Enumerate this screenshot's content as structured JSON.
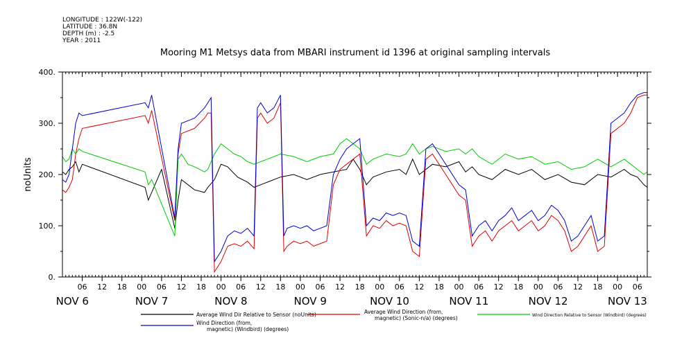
{
  "meta": {
    "longitude": "LONGITUDE : 122W(-122)",
    "latitude": "LATITUDE : 36.8N",
    "depth": "DEPTH (m) : -2.5",
    "year": "YEAR : 2011"
  },
  "chart_data": {
    "type": "line",
    "title": "Mooring M1 Metsys data from MBARI instrument id 1396 at original sampling intervals",
    "ylabel": "noUnits",
    "xlabel": "",
    "ylim": [
      0,
      400
    ],
    "yticks": [
      "0.",
      "100.",
      "200.",
      "300.",
      "400."
    ],
    "xlim_hours": [
      0,
      177
    ],
    "hour_ticks": [
      "06",
      "12",
      "18",
      "00",
      "06",
      "12",
      "18",
      "00",
      "06",
      "12",
      "18",
      "00",
      "06",
      "12",
      "18",
      "00",
      "06",
      "12",
      "18",
      "00",
      "06",
      "12",
      "18",
      "00",
      "06",
      "12",
      "18",
      "00",
      "06",
      "12",
      "18",
      "00",
      "06"
    ],
    "day_labels": [
      {
        "label": "NOV   6",
        "day": 6
      },
      {
        "label": "NOV   7",
        "day": 7
      },
      {
        "label": "NOV   8",
        "day": 8
      },
      {
        "label": "NOV   9",
        "day": 9
      },
      {
        "label": "NOV 10",
        "day": 10
      },
      {
        "label": "NOV 11",
        "day": 11
      },
      {
        "label": "NOV 12",
        "day": 12
      },
      {
        "label": "NOV 13",
        "day": 13
      }
    ],
    "grid": false,
    "legend_position": "bottom",
    "series": [
      {
        "name": "Average Wind Dir Relative to Sensor (noUnits)",
        "color": "#000000",
        "points": [
          [
            0,
            205
          ],
          [
            1,
            200
          ],
          [
            2,
            210
          ],
          [
            3,
            215
          ],
          [
            4,
            225
          ],
          [
            5,
            205
          ],
          [
            6,
            220
          ],
          [
            25,
            175
          ],
          [
            26,
            150
          ],
          [
            27,
            165
          ],
          [
            30,
            210
          ],
          [
            34,
            95
          ],
          [
            35,
            150
          ],
          [
            36,
            190
          ],
          [
            38,
            180
          ],
          [
            40,
            170
          ],
          [
            43,
            165
          ],
          [
            44,
            175
          ],
          [
            46,
            190
          ],
          [
            48,
            220
          ],
          [
            50,
            215
          ],
          [
            53,
            195
          ],
          [
            56,
            185
          ],
          [
            58,
            175
          ],
          [
            62,
            185
          ],
          [
            66,
            195
          ],
          [
            70,
            200
          ],
          [
            74,
            190
          ],
          [
            78,
            200
          ],
          [
            82,
            205
          ],
          [
            86,
            210
          ],
          [
            88,
            230
          ],
          [
            90,
            210
          ],
          [
            92,
            180
          ],
          [
            94,
            195
          ],
          [
            98,
            205
          ],
          [
            102,
            210
          ],
          [
            104,
            200
          ],
          [
            106,
            230
          ],
          [
            108,
            200
          ],
          [
            112,
            220
          ],
          [
            116,
            215
          ],
          [
            120,
            225
          ],
          [
            122,
            205
          ],
          [
            124,
            215
          ],
          [
            126,
            200
          ],
          [
            130,
            190
          ],
          [
            134,
            210
          ],
          [
            138,
            200
          ],
          [
            142,
            210
          ],
          [
            146,
            190
          ],
          [
            150,
            200
          ],
          [
            154,
            185
          ],
          [
            158,
            180
          ],
          [
            162,
            200
          ],
          [
            166,
            195
          ],
          [
            170,
            210
          ],
          [
            172,
            200
          ],
          [
            174,
            195
          ],
          [
            176,
            180
          ],
          [
            177,
            175
          ]
        ]
      },
      {
        "name": "Average Wind Direction (from, magnetic) (Sonic-n/a) (degrees)",
        "color": "#e00000",
        "points": [
          [
            0,
            170
          ],
          [
            1,
            165
          ],
          [
            2,
            175
          ],
          [
            3,
            190
          ],
          [
            4,
            240
          ],
          [
            5,
            270
          ],
          [
            6,
            290
          ],
          [
            25,
            315
          ],
          [
            26,
            300
          ],
          [
            27,
            325
          ],
          [
            34,
            110
          ],
          [
            35,
            240
          ],
          [
            36,
            280
          ],
          [
            38,
            285
          ],
          [
            40,
            290
          ],
          [
            43,
            310
          ],
          [
            44,
            320
          ],
          [
            45,
            320
          ],
          [
            46,
            10
          ],
          [
            48,
            30
          ],
          [
            50,
            60
          ],
          [
            52,
            65
          ],
          [
            54,
            60
          ],
          [
            56,
            70
          ],
          [
            58,
            55
          ],
          [
            59,
            310
          ],
          [
            60,
            320
          ],
          [
            62,
            300
          ],
          [
            64,
            310
          ],
          [
            66,
            340
          ],
          [
            67,
            50
          ],
          [
            68,
            60
          ],
          [
            70,
            70
          ],
          [
            72,
            65
          ],
          [
            74,
            70
          ],
          [
            76,
            60
          ],
          [
            78,
            65
          ],
          [
            80,
            70
          ],
          [
            82,
            180
          ],
          [
            84,
            210
          ],
          [
            86,
            220
          ],
          [
            88,
            230
          ],
          [
            90,
            240
          ],
          [
            92,
            80
          ],
          [
            94,
            100
          ],
          [
            96,
            95
          ],
          [
            98,
            110
          ],
          [
            100,
            100
          ],
          [
            102,
            105
          ],
          [
            104,
            100
          ],
          [
            106,
            50
          ],
          [
            108,
            40
          ],
          [
            110,
            230
          ],
          [
            112,
            240
          ],
          [
            114,
            220
          ],
          [
            116,
            200
          ],
          [
            118,
            180
          ],
          [
            120,
            160
          ],
          [
            122,
            150
          ],
          [
            124,
            60
          ],
          [
            126,
            80
          ],
          [
            128,
            90
          ],
          [
            130,
            70
          ],
          [
            132,
            90
          ],
          [
            134,
            100
          ],
          [
            136,
            110
          ],
          [
            138,
            90
          ],
          [
            140,
            100
          ],
          [
            142,
            110
          ],
          [
            144,
            90
          ],
          [
            146,
            100
          ],
          [
            148,
            120
          ],
          [
            150,
            110
          ],
          [
            152,
            90
          ],
          [
            154,
            50
          ],
          [
            156,
            60
          ],
          [
            158,
            80
          ],
          [
            160,
            100
          ],
          [
            162,
            50
          ],
          [
            164,
            60
          ],
          [
            166,
            280
          ],
          [
            168,
            290
          ],
          [
            170,
            300
          ],
          [
            172,
            320
          ],
          [
            174,
            350
          ],
          [
            176,
            355
          ],
          [
            177,
            355
          ]
        ]
      },
      {
        "name": "Wind Direction Relative to Sensor (Windbird) (degrees)",
        "color": "#00cc00",
        "points": [
          [
            0,
            235
          ],
          [
            1,
            225
          ],
          [
            2,
            230
          ],
          [
            3,
            250
          ],
          [
            4,
            240
          ],
          [
            5,
            250
          ],
          [
            6,
            245
          ],
          [
            25,
            205
          ],
          [
            26,
            180
          ],
          [
            27,
            190
          ],
          [
            34,
            80
          ],
          [
            35,
            230
          ],
          [
            36,
            240
          ],
          [
            38,
            220
          ],
          [
            40,
            215
          ],
          [
            43,
            205
          ],
          [
            44,
            210
          ],
          [
            46,
            240
          ],
          [
            48,
            260
          ],
          [
            50,
            250
          ],
          [
            52,
            240
          ],
          [
            54,
            235
          ],
          [
            56,
            225
          ],
          [
            58,
            220
          ],
          [
            62,
            230
          ],
          [
            66,
            240
          ],
          [
            70,
            235
          ],
          [
            74,
            225
          ],
          [
            78,
            235
          ],
          [
            82,
            240
          ],
          [
            84,
            260
          ],
          [
            86,
            270
          ],
          [
            88,
            260
          ],
          [
            90,
            250
          ],
          [
            92,
            220
          ],
          [
            94,
            230
          ],
          [
            98,
            240
          ],
          [
            102,
            235
          ],
          [
            104,
            240
          ],
          [
            106,
            260
          ],
          [
            108,
            240
          ],
          [
            110,
            250
          ],
          [
            112,
            255
          ],
          [
            116,
            245
          ],
          [
            120,
            250
          ],
          [
            122,
            240
          ],
          [
            124,
            250
          ],
          [
            126,
            235
          ],
          [
            130,
            220
          ],
          [
            134,
            240
          ],
          [
            138,
            230
          ],
          [
            142,
            235
          ],
          [
            146,
            220
          ],
          [
            150,
            225
          ],
          [
            154,
            210
          ],
          [
            158,
            215
          ],
          [
            162,
            230
          ],
          [
            166,
            215
          ],
          [
            170,
            230
          ],
          [
            172,
            220
          ],
          [
            174,
            210
          ],
          [
            176,
            200
          ],
          [
            177,
            205
          ]
        ]
      },
      {
        "name": "Wind Direction (from, magnetic) (Windbird) (degrees)",
        "color": "#0000d0",
        "points": [
          [
            0,
            190
          ],
          [
            1,
            185
          ],
          [
            2,
            200
          ],
          [
            3,
            250
          ],
          [
            4,
            300
          ],
          [
            5,
            320
          ],
          [
            6,
            315
          ],
          [
            25,
            340
          ],
          [
            26,
            330
          ],
          [
            27,
            355
          ],
          [
            34,
            115
          ],
          [
            35,
            250
          ],
          [
            36,
            300
          ],
          [
            38,
            305
          ],
          [
            40,
            310
          ],
          [
            43,
            330
          ],
          [
            44,
            340
          ],
          [
            45,
            350
          ],
          [
            46,
            30
          ],
          [
            48,
            50
          ],
          [
            50,
            80
          ],
          [
            52,
            90
          ],
          [
            54,
            85
          ],
          [
            56,
            95
          ],
          [
            58,
            80
          ],
          [
            59,
            330
          ],
          [
            60,
            340
          ],
          [
            62,
            320
          ],
          [
            64,
            330
          ],
          [
            66,
            355
          ],
          [
            67,
            80
          ],
          [
            68,
            95
          ],
          [
            70,
            100
          ],
          [
            72,
            95
          ],
          [
            74,
            100
          ],
          [
            76,
            90
          ],
          [
            78,
            95
          ],
          [
            80,
            100
          ],
          [
            82,
            200
          ],
          [
            84,
            230
          ],
          [
            86,
            250
          ],
          [
            88,
            260
          ],
          [
            90,
            270
          ],
          [
            92,
            100
          ],
          [
            94,
            115
          ],
          [
            96,
            110
          ],
          [
            98,
            125
          ],
          [
            100,
            120
          ],
          [
            102,
            125
          ],
          [
            104,
            120
          ],
          [
            106,
            70
          ],
          [
            108,
            60
          ],
          [
            110,
            250
          ],
          [
            112,
            260
          ],
          [
            114,
            240
          ],
          [
            116,
            220
          ],
          [
            118,
            200
          ],
          [
            120,
            180
          ],
          [
            122,
            170
          ],
          [
            124,
            80
          ],
          [
            126,
            100
          ],
          [
            128,
            110
          ],
          [
            130,
            90
          ],
          [
            132,
            110
          ],
          [
            134,
            120
          ],
          [
            136,
            135
          ],
          [
            138,
            110
          ],
          [
            140,
            120
          ],
          [
            142,
            130
          ],
          [
            144,
            110
          ],
          [
            146,
            120
          ],
          [
            148,
            140
          ],
          [
            150,
            130
          ],
          [
            152,
            110
          ],
          [
            154,
            70
          ],
          [
            156,
            80
          ],
          [
            158,
            100
          ],
          [
            160,
            120
          ],
          [
            162,
            70
          ],
          [
            164,
            80
          ],
          [
            166,
            300
          ],
          [
            168,
            310
          ],
          [
            170,
            320
          ],
          [
            172,
            340
          ],
          [
            174,
            355
          ],
          [
            176,
            360
          ],
          [
            177,
            360
          ]
        ]
      }
    ],
    "legend": [
      {
        "line1": "Average Wind Dir Relative to Sensor (noUnits)",
        "line2": "",
        "color": "#000000"
      },
      {
        "line1": "Average Wind Direction (from,",
        "line2": "magnetic) (Sonic-n/a) (degrees)",
        "color": "#e00000"
      },
      {
        "line1": "Wind Direction Relative to Sensor (Windbird) (degrees)",
        "line2": "",
        "color": "#00cc00"
      },
      {
        "line1": "Wind Direction (from,",
        "line2": "magnetic) (Windbird) (degrees)",
        "color": "#0000d0"
      }
    ]
  }
}
